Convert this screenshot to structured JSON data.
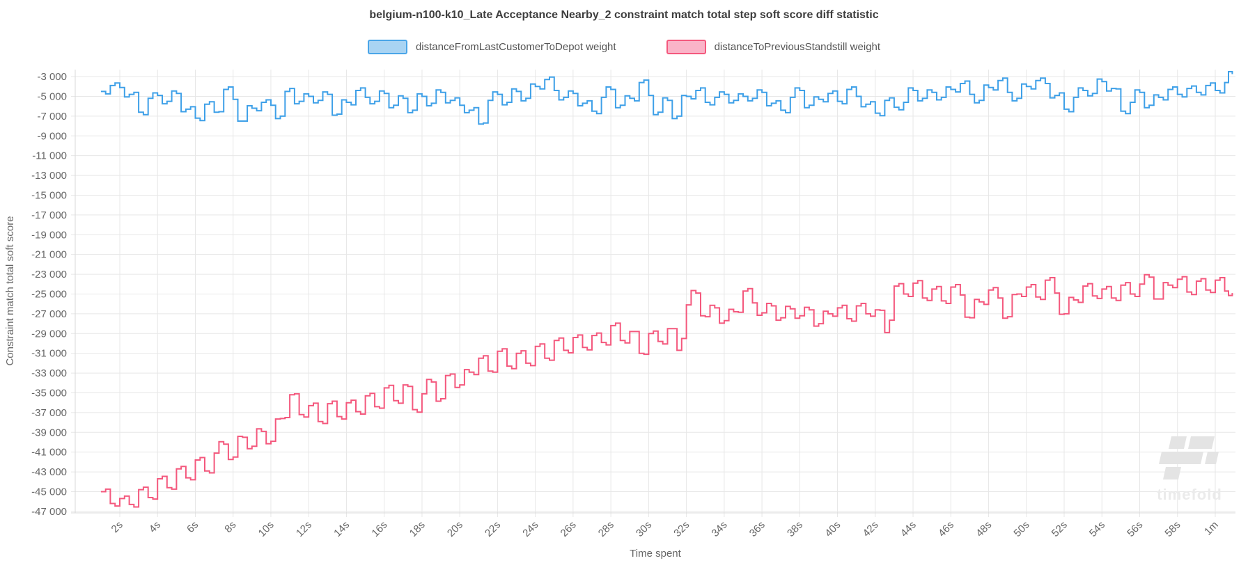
{
  "legend": {
    "items": [
      {
        "label": "distanceFromLastCustomerToDepot weight",
        "fill": "#a9d4f3",
        "border": "#4aa5e8"
      },
      {
        "label": "distanceToPreviousStandstill weight",
        "fill": "#fab4c8",
        "border": "#f4587d"
      }
    ]
  },
  "watermark": {
    "text": "timefold"
  },
  "chart_data": {
    "type": "line",
    "title": "belgium-n100-k10_Late Acceptance Nearby_2 constraint match total step soft score diff statistic",
    "xlabel": "Time spent",
    "ylabel": "Constraint match total soft score",
    "legend_position": "top",
    "grid": true,
    "grid_color": "#e7e7e7",
    "axis_color": "#d9d9d9",
    "tick_color": "#666666",
    "xlim": [
      -0.36,
      61.07
    ],
    "ylim": [
      -47150,
      -2290
    ],
    "x_ticks": [
      {
        "value": 2,
        "label": "2s"
      },
      {
        "value": 4,
        "label": "4s"
      },
      {
        "value": 6,
        "label": "6s"
      },
      {
        "value": 8,
        "label": "8s"
      },
      {
        "value": 10,
        "label": "10s"
      },
      {
        "value": 12,
        "label": "12s"
      },
      {
        "value": 14,
        "label": "14s"
      },
      {
        "value": 16,
        "label": "16s"
      },
      {
        "value": 18,
        "label": "18s"
      },
      {
        "value": 20,
        "label": "20s"
      },
      {
        "value": 22,
        "label": "22s"
      },
      {
        "value": 24,
        "label": "24s"
      },
      {
        "value": 26,
        "label": "26s"
      },
      {
        "value": 28,
        "label": "28s"
      },
      {
        "value": 30,
        "label": "30s"
      },
      {
        "value": 32,
        "label": "32s"
      },
      {
        "value": 34,
        "label": "34s"
      },
      {
        "value": 36,
        "label": "36s"
      },
      {
        "value": 38,
        "label": "38s"
      },
      {
        "value": 40,
        "label": "40s"
      },
      {
        "value": 42,
        "label": "42s"
      },
      {
        "value": 44,
        "label": "44s"
      },
      {
        "value": 46,
        "label": "46s"
      },
      {
        "value": 48,
        "label": "48s"
      },
      {
        "value": 50,
        "label": "50s"
      },
      {
        "value": 52,
        "label": "52s"
      },
      {
        "value": 54,
        "label": "54s"
      },
      {
        "value": 56,
        "label": "56s"
      },
      {
        "value": 58,
        "label": "58s"
      },
      {
        "value": 60,
        "label": "1m"
      }
    ],
    "y_ticks": [
      {
        "value": -3000,
        "label": "-3 000"
      },
      {
        "value": -5000,
        "label": "-5 000"
      },
      {
        "value": -7000,
        "label": "-7 000"
      },
      {
        "value": -9000,
        "label": "-9 000"
      },
      {
        "value": -11000,
        "label": "-11 000"
      },
      {
        "value": -13000,
        "label": "-13 000"
      },
      {
        "value": -15000,
        "label": "-15 000"
      },
      {
        "value": -17000,
        "label": "-17 000"
      },
      {
        "value": -19000,
        "label": "-19 000"
      },
      {
        "value": -21000,
        "label": "-21 000"
      },
      {
        "value": -23000,
        "label": "-23 000"
      },
      {
        "value": -25000,
        "label": "-25 000"
      },
      {
        "value": -27000,
        "label": "-27 000"
      },
      {
        "value": -29000,
        "label": "-29 000"
      },
      {
        "value": -31000,
        "label": "-31 000"
      },
      {
        "value": -33000,
        "label": "-33 000"
      },
      {
        "value": -35000,
        "label": "-35 000"
      },
      {
        "value": -37000,
        "label": "-37 000"
      },
      {
        "value": -39000,
        "label": "-39 000"
      },
      {
        "value": -41000,
        "label": "-41 000"
      },
      {
        "value": -43000,
        "label": "-43 000"
      },
      {
        "value": -45000,
        "label": "-45 000"
      },
      {
        "value": -47000,
        "label": "-47 000"
      }
    ],
    "series": [
      {
        "name": "distanceFromLastCustomerToDepot weight",
        "color": "#3ea0e8",
        "points": [
          [
            1.0,
            -4500
          ],
          [
            1.5,
            -3900
          ],
          [
            2.0,
            -4100
          ],
          [
            2.5,
            -4800
          ],
          [
            3.0,
            -6600
          ],
          [
            3.5,
            -5200
          ],
          [
            4.0,
            -4900
          ],
          [
            4.5,
            -5500
          ],
          [
            5.0,
            -4700
          ],
          [
            5.5,
            -6300
          ],
          [
            6.0,
            -7200
          ],
          [
            6.5,
            -5800
          ],
          [
            7.0,
            -6600
          ],
          [
            7.5,
            -4300
          ],
          [
            8.0,
            -5300
          ],
          [
            8.5,
            -7500
          ],
          [
            9.0,
            -6200
          ],
          [
            9.5,
            -5600
          ],
          [
            10.0,
            -5900
          ],
          [
            10.5,
            -7000
          ],
          [
            11.0,
            -4200
          ],
          [
            11.5,
            -5500
          ],
          [
            12.0,
            -5000
          ],
          [
            12.5,
            -5400
          ],
          [
            13.0,
            -4800
          ],
          [
            13.5,
            -6800
          ],
          [
            14.0,
            -5600
          ],
          [
            14.5,
            -4400
          ],
          [
            15.0,
            -5100
          ],
          [
            15.5,
            -5500
          ],
          [
            16.0,
            -4700
          ],
          [
            16.5,
            -5900
          ],
          [
            17.0,
            -5200
          ],
          [
            17.5,
            -6400
          ],
          [
            18.0,
            -5000
          ],
          [
            18.5,
            -5700
          ],
          [
            19.0,
            -4600
          ],
          [
            19.5,
            -5400
          ],
          [
            20.0,
            -5900
          ],
          [
            20.5,
            -6400
          ],
          [
            21.0,
            -7800
          ],
          [
            21.5,
            -5400
          ],
          [
            22.0,
            -4800
          ],
          [
            22.5,
            -5600
          ],
          [
            23.0,
            -4500
          ],
          [
            23.5,
            -5200
          ],
          [
            24.0,
            -4000
          ],
          [
            24.5,
            -3300
          ],
          [
            25.0,
            -4400
          ],
          [
            25.5,
            -5100
          ],
          [
            26.0,
            -4700
          ],
          [
            26.5,
            -5700
          ],
          [
            27.0,
            -6500
          ],
          [
            27.5,
            -5100
          ],
          [
            28.0,
            -4300
          ],
          [
            28.5,
            -5900
          ],
          [
            29.0,
            -5200
          ],
          [
            29.5,
            -3600
          ],
          [
            30.0,
            -4900
          ],
          [
            30.5,
            -6600
          ],
          [
            31.0,
            -5400
          ],
          [
            31.5,
            -7000
          ],
          [
            32.0,
            -5000
          ],
          [
            32.5,
            -4400
          ],
          [
            33.0,
            -5600
          ],
          [
            33.5,
            -5100
          ],
          [
            34.0,
            -4800
          ],
          [
            34.5,
            -5400
          ],
          [
            35.0,
            -5000
          ],
          [
            35.5,
            -5200
          ],
          [
            36.0,
            -4600
          ],
          [
            36.5,
            -5700
          ],
          [
            37.0,
            -6400
          ],
          [
            37.5,
            -5100
          ],
          [
            38.0,
            -4400
          ],
          [
            38.5,
            -5900
          ],
          [
            39.0,
            -5300
          ],
          [
            39.5,
            -4700
          ],
          [
            40.0,
            -5500
          ],
          [
            40.5,
            -4300
          ],
          [
            41.0,
            -5000
          ],
          [
            41.5,
            -5800
          ],
          [
            42.0,
            -6700
          ],
          [
            42.5,
            -5400
          ],
          [
            43.0,
            -6100
          ],
          [
            43.5,
            -5600
          ],
          [
            44.0,
            -4400
          ],
          [
            44.5,
            -5200
          ],
          [
            45.0,
            -4600
          ],
          [
            45.5,
            -5100
          ],
          [
            46.0,
            -4300
          ],
          [
            46.5,
            -3700
          ],
          [
            47.0,
            -4800
          ],
          [
            47.5,
            -5400
          ],
          [
            48.0,
            -4100
          ],
          [
            48.5,
            -3400
          ],
          [
            49.0,
            -4600
          ],
          [
            49.5,
            -5200
          ],
          [
            50.0,
            -4000
          ],
          [
            50.5,
            -3400
          ],
          [
            51.0,
            -3700
          ],
          [
            51.5,
            -4900
          ],
          [
            52.0,
            -6300
          ],
          [
            52.5,
            -5100
          ],
          [
            53.0,
            -4400
          ],
          [
            53.5,
            -4700
          ],
          [
            54.0,
            -3500
          ],
          [
            54.5,
            -4200
          ],
          [
            55.0,
            -6500
          ],
          [
            55.5,
            -5600
          ],
          [
            56.0,
            -4600
          ],
          [
            56.5,
            -5900
          ],
          [
            57.0,
            -5100
          ],
          [
            57.5,
            -4300
          ],
          [
            58.0,
            -4800
          ],
          [
            58.5,
            -4200
          ],
          [
            59.0,
            -4600
          ],
          [
            59.5,
            -3900
          ],
          [
            60.0,
            -4400
          ],
          [
            60.5,
            -3600
          ],
          [
            60.9,
            -2750
          ]
        ]
      },
      {
        "name": "distanceToPreviousStandstill weight",
        "color": "#f4587d",
        "points": [
          [
            1.0,
            -45000
          ],
          [
            1.5,
            -46200
          ],
          [
            2.0,
            -45700
          ],
          [
            2.5,
            -46300
          ],
          [
            3.0,
            -44800
          ],
          [
            3.5,
            -45600
          ],
          [
            4.0,
            -43700
          ],
          [
            4.5,
            -44600
          ],
          [
            5.0,
            -42700
          ],
          [
            5.5,
            -43600
          ],
          [
            6.0,
            -41800
          ],
          [
            6.5,
            -42900
          ],
          [
            7.0,
            -41100
          ],
          [
            7.5,
            -40200
          ],
          [
            8.0,
            -41500
          ],
          [
            8.5,
            -39500
          ],
          [
            9.0,
            -40400
          ],
          [
            9.5,
            -38900
          ],
          [
            10.0,
            -39900
          ],
          [
            10.5,
            -37600
          ],
          [
            11.0,
            -35200
          ],
          [
            11.5,
            -37200
          ],
          [
            12.0,
            -36300
          ],
          [
            12.5,
            -37900
          ],
          [
            13.0,
            -36100
          ],
          [
            13.5,
            -37400
          ],
          [
            14.0,
            -36000
          ],
          [
            14.5,
            -36900
          ],
          [
            15.0,
            -35300
          ],
          [
            15.5,
            -36400
          ],
          [
            16.0,
            -34500
          ],
          [
            16.5,
            -35800
          ],
          [
            17.0,
            -34200
          ],
          [
            17.5,
            -36700
          ],
          [
            18.0,
            -35100
          ],
          [
            18.5,
            -33900
          ],
          [
            19.0,
            -35600
          ],
          [
            19.5,
            -33100
          ],
          [
            20.0,
            -34200
          ],
          [
            20.5,
            -32900
          ],
          [
            21.0,
            -31500
          ],
          [
            21.5,
            -32800
          ],
          [
            22.0,
            -30800
          ],
          [
            22.5,
            -32300
          ],
          [
            23.0,
            -31000
          ],
          [
            23.5,
            -32000
          ],
          [
            24.0,
            -30300
          ],
          [
            24.5,
            -31500
          ],
          [
            25.0,
            -29700
          ],
          [
            25.5,
            -30700
          ],
          [
            26.0,
            -29400
          ],
          [
            26.5,
            -30400
          ],
          [
            27.0,
            -29200
          ],
          [
            27.5,
            -29900
          ],
          [
            28.0,
            -28200
          ],
          [
            28.5,
            -29700
          ],
          [
            29.0,
            -28800
          ],
          [
            29.5,
            -31000
          ],
          [
            30.0,
            -29000
          ],
          [
            30.5,
            -29800
          ],
          [
            31.0,
            -28500
          ],
          [
            31.5,
            -30700
          ],
          [
            32.0,
            -26100
          ],
          [
            32.5,
            -24900
          ],
          [
            33.0,
            -27300
          ],
          [
            33.5,
            -26400
          ],
          [
            34.0,
            -27700
          ],
          [
            34.5,
            -26800
          ],
          [
            35.0,
            -24700
          ],
          [
            35.5,
            -25900
          ],
          [
            36.0,
            -26900
          ],
          [
            36.5,
            -26200
          ],
          [
            37.0,
            -27400
          ],
          [
            37.5,
            -26500
          ],
          [
            38.0,
            -27200
          ],
          [
            38.5,
            -26600
          ],
          [
            39.0,
            -28000
          ],
          [
            39.5,
            -27000
          ],
          [
            40.0,
            -26400
          ],
          [
            40.5,
            -27500
          ],
          [
            41.0,
            -26200
          ],
          [
            41.5,
            -27000
          ],
          [
            42.0,
            -26600
          ],
          [
            42.5,
            -28900
          ],
          [
            43.0,
            -24200
          ],
          [
            43.5,
            -25000
          ],
          [
            44.0,
            -23900
          ],
          [
            44.5,
            -25400
          ],
          [
            45.0,
            -24500
          ],
          [
            45.5,
            -25700
          ],
          [
            46.0,
            -24300
          ],
          [
            46.5,
            -25100
          ],
          [
            47.0,
            -27400
          ],
          [
            47.5,
            -25800
          ],
          [
            48.0,
            -24600
          ],
          [
            48.5,
            -25400
          ],
          [
            49.0,
            -27300
          ],
          [
            49.5,
            -25000
          ],
          [
            50.0,
            -24300
          ],
          [
            50.5,
            -25300
          ],
          [
            51.0,
            -23600
          ],
          [
            51.5,
            -24900
          ],
          [
            52.0,
            -27000
          ],
          [
            52.5,
            -25600
          ],
          [
            53.0,
            -24200
          ],
          [
            53.5,
            -25200
          ],
          [
            54.0,
            -24500
          ],
          [
            54.5,
            -25400
          ],
          [
            55.0,
            -24100
          ],
          [
            55.5,
            -25000
          ],
          [
            56.0,
            -24000
          ],
          [
            56.5,
            -23300
          ],
          [
            57.0,
            -25500
          ],
          [
            57.5,
            -24100
          ],
          [
            58.0,
            -23500
          ],
          [
            58.5,
            -24800
          ],
          [
            59.0,
            -23700
          ],
          [
            59.5,
            -24600
          ],
          [
            60.0,
            -23600
          ],
          [
            60.5,
            -24700
          ],
          [
            60.9,
            -24900
          ]
        ]
      }
    ]
  }
}
